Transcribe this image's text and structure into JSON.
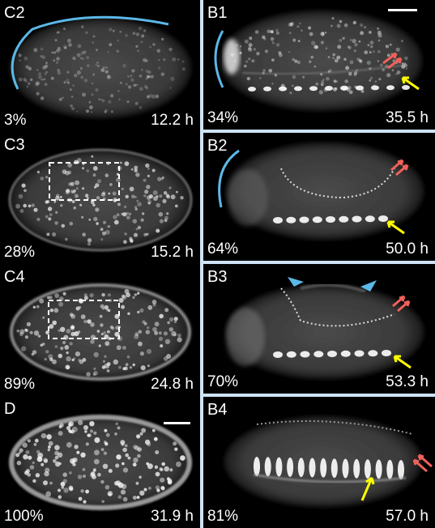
{
  "colors": {
    "cyan": "#5bb8e8",
    "red": "#f0605a",
    "yellow": "#ffff00",
    "divider": "#cfe3f5"
  },
  "panels": {
    "c2": {
      "id": "C2",
      "percent": "3%",
      "time": "12.2 h"
    },
    "c3": {
      "id": "C3",
      "percent": "28%",
      "time": "15.2 h"
    },
    "c4": {
      "id": "C4",
      "percent": "89%",
      "time": "24.8 h"
    },
    "d": {
      "id": "D",
      "percent": "100%",
      "time": "31.9 h"
    },
    "b1": {
      "id": "B1",
      "percent": "34%",
      "time": "35.5 h"
    },
    "b2": {
      "id": "B2",
      "percent": "64%",
      "time": "50.0 h"
    },
    "b3": {
      "id": "B3",
      "percent": "70%",
      "time": "53.3 h"
    },
    "b4": {
      "id": "B4",
      "percent": "81%",
      "time": "57.0 h"
    }
  }
}
